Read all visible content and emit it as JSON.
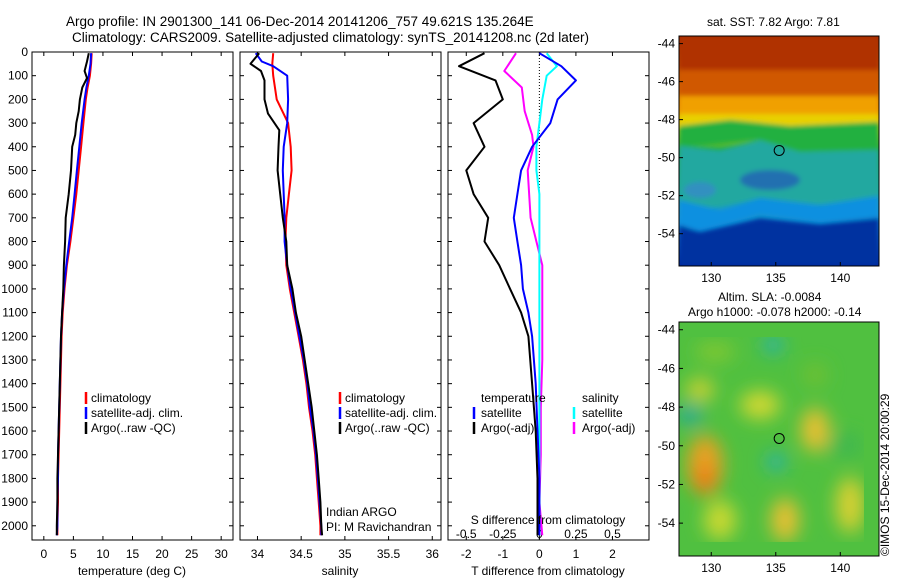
{
  "title_line1": "Argo profile: IN 2901300_141 06-Dec-2014 20141206_757 49.621S 135.264E",
  "title_line2": "Climatology: CARS2009. Satellite-adjusted climatology: synTS_20141208.nc (2d later)",
  "colors": {
    "climatology": "#ff0000",
    "satellite": "#0000ff",
    "argo": "#000000",
    "satellite_s": "#00ffff",
    "argo_s": "#ff00ff"
  },
  "credit": "©IMOS 15-Dec-2014 20:00:29",
  "argo_info": {
    "line1": "Indian ARGO",
    "line2": "PI: M Ravichandran"
  },
  "chart_data": [
    {
      "type": "line",
      "name": "temperature-profile",
      "xlabel": "temperature (deg C)",
      "ylabel": "",
      "xlim": [
        -2,
        32
      ],
      "ylim": [
        2060,
        0
      ],
      "xticks": [
        "0",
        "5",
        "10",
        "15",
        "20",
        "25",
        "30"
      ],
      "yticks": [
        "0",
        "100",
        "200",
        "300",
        "400",
        "500",
        "600",
        "700",
        "800",
        "900",
        "1000",
        "1100",
        "1200",
        "1300",
        "1400",
        "1500",
        "1600",
        "1700",
        "1800",
        "1900",
        "2000"
      ],
      "legend": [
        "climatology",
        "satellite-adj. clim.",
        "Argo(..raw -QC)"
      ],
      "series": [
        {
          "name": "climatology",
          "color": "#ff0000",
          "points": [
            [
              8.1,
              5
            ],
            [
              8.0,
              50
            ],
            [
              7.8,
              100
            ],
            [
              7.4,
              150
            ],
            [
              7.1,
              200
            ],
            [
              6.7,
              300
            ],
            [
              6.3,
              400
            ],
            [
              5.9,
              500
            ],
            [
              5.5,
              600
            ],
            [
              5.0,
              700
            ],
            [
              4.5,
              800
            ],
            [
              3.9,
              900
            ],
            [
              3.5,
              1000
            ],
            [
              3.2,
              1100
            ],
            [
              3.0,
              1200
            ],
            [
              2.9,
              1300
            ],
            [
              2.8,
              1400
            ],
            [
              2.7,
              1500
            ],
            [
              2.6,
              1600
            ],
            [
              2.5,
              1700
            ],
            [
              2.4,
              1800
            ],
            [
              2.4,
              1900
            ],
            [
              2.3,
              2000
            ],
            [
              2.3,
              2040
            ]
          ]
        },
        {
          "name": "satellite-adj. clim.",
          "color": "#0000ff",
          "points": [
            [
              8.0,
              5
            ],
            [
              7.9,
              50
            ],
            [
              7.6,
              100
            ],
            [
              7.2,
              150
            ],
            [
              6.9,
              200
            ],
            [
              6.4,
              300
            ],
            [
              6.0,
              400
            ],
            [
              5.6,
              500
            ],
            [
              5.2,
              600
            ],
            [
              4.8,
              700
            ],
            [
              4.3,
              800
            ],
            [
              3.8,
              900
            ],
            [
              3.4,
              1000
            ],
            [
              3.1,
              1100
            ],
            [
              2.9,
              1200
            ],
            [
              2.8,
              1300
            ],
            [
              2.7,
              1400
            ],
            [
              2.6,
              1500
            ],
            [
              2.5,
              1600
            ],
            [
              2.4,
              1700
            ],
            [
              2.4,
              1800
            ],
            [
              2.3,
              1900
            ],
            [
              2.3,
              2000
            ],
            [
              2.2,
              2040
            ]
          ]
        },
        {
          "name": "Argo(..raw -QC)",
          "color": "#000000",
          "points": [
            [
              7.6,
              5
            ],
            [
              7.3,
              40
            ],
            [
              6.9,
              80
            ],
            [
              7.3,
              110
            ],
            [
              6.5,
              150
            ],
            [
              6.1,
              200
            ],
            [
              5.9,
              250
            ],
            [
              5.5,
              300
            ],
            [
              5.3,
              350
            ],
            [
              4.8,
              400
            ],
            [
              4.7,
              450
            ],
            [
              4.6,
              500
            ],
            [
              4.2,
              600
            ],
            [
              3.7,
              700
            ],
            [
              3.6,
              800
            ],
            [
              3.4,
              900
            ],
            [
              3.3,
              1000
            ],
            [
              3.1,
              1100
            ],
            [
              2.9,
              1200
            ],
            [
              2.8,
              1300
            ],
            [
              2.7,
              1400
            ],
            [
              2.6,
              1500
            ],
            [
              2.5,
              1600
            ],
            [
              2.4,
              1700
            ],
            [
              2.3,
              1800
            ],
            [
              2.3,
              1900
            ],
            [
              2.2,
              2000
            ],
            [
              2.2,
              2040
            ]
          ]
        }
      ]
    },
    {
      "type": "line",
      "name": "salinity-profile",
      "xlabel": "salinity",
      "ylabel": "",
      "xlim": [
        33.8,
        36.1
      ],
      "ylim": [
        2060,
        0
      ],
      "xticks": [
        "34",
        "34.5",
        "35",
        "35.5",
        "36"
      ],
      "legend": [
        "climatology",
        "satellite-adj. clim.",
        "Argo(..raw -QC)"
      ],
      "series": [
        {
          "name": "climatology",
          "color": "#ff0000",
          "points": [
            [
              34.18,
              5
            ],
            [
              34.17,
              50
            ],
            [
              34.18,
              100
            ],
            [
              34.22,
              200
            ],
            [
              34.35,
              300
            ],
            [
              34.38,
              400
            ],
            [
              34.39,
              500
            ],
            [
              34.36,
              600
            ],
            [
              34.33,
              700
            ],
            [
              34.32,
              800
            ],
            [
              34.33,
              900
            ],
            [
              34.37,
              1000
            ],
            [
              34.42,
              1100
            ],
            [
              34.47,
              1200
            ],
            [
              34.52,
              1300
            ],
            [
              34.56,
              1400
            ],
            [
              34.59,
              1500
            ],
            [
              34.63,
              1600
            ],
            [
              34.66,
              1700
            ],
            [
              34.68,
              1800
            ],
            [
              34.7,
              1900
            ],
            [
              34.72,
              2000
            ],
            [
              34.72,
              2040
            ]
          ]
        },
        {
          "name": "satellite-adj. clim.",
          "color": "#0000ff",
          "points": [
            [
              33.98,
              5
            ],
            [
              34.05,
              40
            ],
            [
              34.18,
              60
            ],
            [
              34.34,
              100
            ],
            [
              34.35,
              200
            ],
            [
              34.34,
              300
            ],
            [
              34.3,
              400
            ],
            [
              34.29,
              500
            ],
            [
              34.3,
              600
            ],
            [
              34.31,
              700
            ],
            [
              34.31,
              800
            ],
            [
              34.34,
              900
            ],
            [
              34.38,
              1000
            ],
            [
              34.43,
              1100
            ],
            [
              34.48,
              1200
            ],
            [
              34.53,
              1300
            ],
            [
              34.57,
              1400
            ],
            [
              34.6,
              1500
            ],
            [
              34.64,
              1600
            ],
            [
              34.67,
              1700
            ],
            [
              34.69,
              1800
            ],
            [
              34.71,
              1900
            ],
            [
              34.73,
              2000
            ],
            [
              34.73,
              2040
            ]
          ]
        },
        {
          "name": "Argo(..raw -QC)",
          "color": "#000000",
          "points": [
            [
              34.02,
              5
            ],
            [
              33.92,
              50
            ],
            [
              34.04,
              80
            ],
            [
              34.08,
              120
            ],
            [
              34.08,
              200
            ],
            [
              34.12,
              260
            ],
            [
              34.25,
              330
            ],
            [
              34.24,
              400
            ],
            [
              34.23,
              500
            ],
            [
              34.26,
              600
            ],
            [
              34.29,
              700
            ],
            [
              34.33,
              800
            ],
            [
              34.34,
              900
            ],
            [
              34.4,
              1000
            ],
            [
              34.44,
              1100
            ],
            [
              34.5,
              1200
            ],
            [
              34.54,
              1300
            ],
            [
              34.58,
              1400
            ],
            [
              34.62,
              1500
            ],
            [
              34.65,
              1600
            ],
            [
              34.68,
              1700
            ],
            [
              34.7,
              1800
            ],
            [
              34.72,
              1900
            ],
            [
              34.73,
              2000
            ],
            [
              34.74,
              2040
            ]
          ]
        }
      ]
    },
    {
      "type": "line",
      "name": "difference-profile",
      "xlabel": "T difference from climatology",
      "xlabel_top": "S difference from climatology",
      "xlim": [
        -2.5,
        3.0
      ],
      "ylim": [
        2060,
        0
      ],
      "xticks": [
        "-2",
        "-1",
        "0",
        "1",
        "2"
      ],
      "xticks_top": [
        "-0.5",
        "-0.25",
        "0",
        "0.25",
        "0.5"
      ],
      "legend_left": {
        "title": "temperature",
        "items": [
          "satellite",
          "Argo(-adj)"
        ]
      },
      "legend_right": {
        "title": "salinity",
        "items": [
          "satellite",
          "Argo(-adj)"
        ]
      },
      "series": [
        {
          "name": "T satellite",
          "color": "#0000ff",
          "points": [
            [
              0.0,
              5
            ],
            [
              0.6,
              60
            ],
            [
              1.0,
              120
            ],
            [
              0.5,
              200
            ],
            [
              0.3,
              300
            ],
            [
              -0.2,
              400
            ],
            [
              -0.5,
              500
            ],
            [
              -0.6,
              600
            ],
            [
              -0.7,
              700
            ],
            [
              -0.6,
              800
            ],
            [
              -0.5,
              900
            ],
            [
              -0.45,
              1000
            ],
            [
              -0.3,
              1100
            ],
            [
              -0.2,
              1200
            ],
            [
              -0.1,
              1400
            ],
            [
              -0.05,
              1600
            ],
            [
              0.0,
              1800
            ],
            [
              0.0,
              2000
            ],
            [
              0.0,
              2040
            ]
          ]
        },
        {
          "name": "T Argo(-adj)",
          "color": "#000000",
          "points": [
            [
              -1.5,
              5
            ],
            [
              -2.2,
              60
            ],
            [
              -1.2,
              120
            ],
            [
              -1.0,
              200
            ],
            [
              -1.8,
              300
            ],
            [
              -1.5,
              400
            ],
            [
              -2.0,
              500
            ],
            [
              -1.8,
              600
            ],
            [
              -1.4,
              700
            ],
            [
              -1.5,
              800
            ],
            [
              -1.1,
              900
            ],
            [
              -0.8,
              1000
            ],
            [
              -0.5,
              1100
            ],
            [
              -0.3,
              1200
            ],
            [
              -0.2,
              1400
            ],
            [
              -0.1,
              1600
            ],
            [
              -0.05,
              1800
            ],
            [
              -0.05,
              2000
            ],
            [
              -0.05,
              2040
            ]
          ]
        },
        {
          "name": "S satellite",
          "color": "#00ffff",
          "points": [
            [
              0.05,
              5
            ],
            [
              0.12,
              60
            ],
            [
              0.05,
              100
            ],
            [
              0.02,
              200
            ],
            [
              0.0,
              300
            ],
            [
              -0.02,
              400
            ],
            [
              -0.02,
              500
            ],
            [
              0.0,
              600
            ],
            [
              0.0,
              800
            ],
            [
              0.0,
              1000
            ],
            [
              0.0,
              1200
            ],
            [
              0.0,
              1400
            ],
            [
              0.0,
              1600
            ],
            [
              0.0,
              1800
            ],
            [
              0.0,
              2000
            ],
            [
              0.0,
              2040
            ]
          ]
        },
        {
          "name": "S Argo(-adj)",
          "color": "#ff00ff",
          "points": [
            [
              -0.16,
              5
            ],
            [
              -0.24,
              80
            ],
            [
              -0.12,
              150
            ],
            [
              -0.1,
              250
            ],
            [
              -0.05,
              350
            ],
            [
              -0.04,
              400
            ],
            [
              -0.08,
              500
            ],
            [
              -0.06,
              700
            ],
            [
              -0.02,
              800
            ],
            [
              0.02,
              900
            ],
            [
              0.02,
              1100
            ],
            [
              0.02,
              1300
            ],
            [
              0.01,
              1500
            ],
            [
              0.01,
              1700
            ],
            [
              0.0,
              1900
            ],
            [
              0.02,
              2040
            ]
          ]
        }
      ]
    },
    {
      "type": "heatmap",
      "name": "sst-map",
      "title": "sat. SST: 7.82  Argo: 7.81",
      "xlim": [
        127.5,
        143
      ],
      "ylim": [
        -55.7,
        -43.6
      ],
      "xticks": [
        "130",
        "135",
        "140"
      ],
      "yticks": [
        "-44",
        "-46",
        "-48",
        "-50",
        "-52",
        "-54"
      ],
      "marker": [
        135.264,
        -49.621
      ]
    },
    {
      "type": "heatmap",
      "name": "sla-map",
      "title_line1": "Altim. SLA: -0.0084",
      "title_line2": "Argo h1000: -0.078  h2000: -0.14",
      "xlim": [
        127.5,
        143
      ],
      "ylim": [
        -55.7,
        -43.6
      ],
      "xticks": [
        "130",
        "135",
        "140"
      ],
      "yticks": [
        "-44",
        "-46",
        "-48",
        "-50",
        "-52",
        "-54"
      ],
      "marker": [
        135.264,
        -49.621
      ]
    }
  ]
}
